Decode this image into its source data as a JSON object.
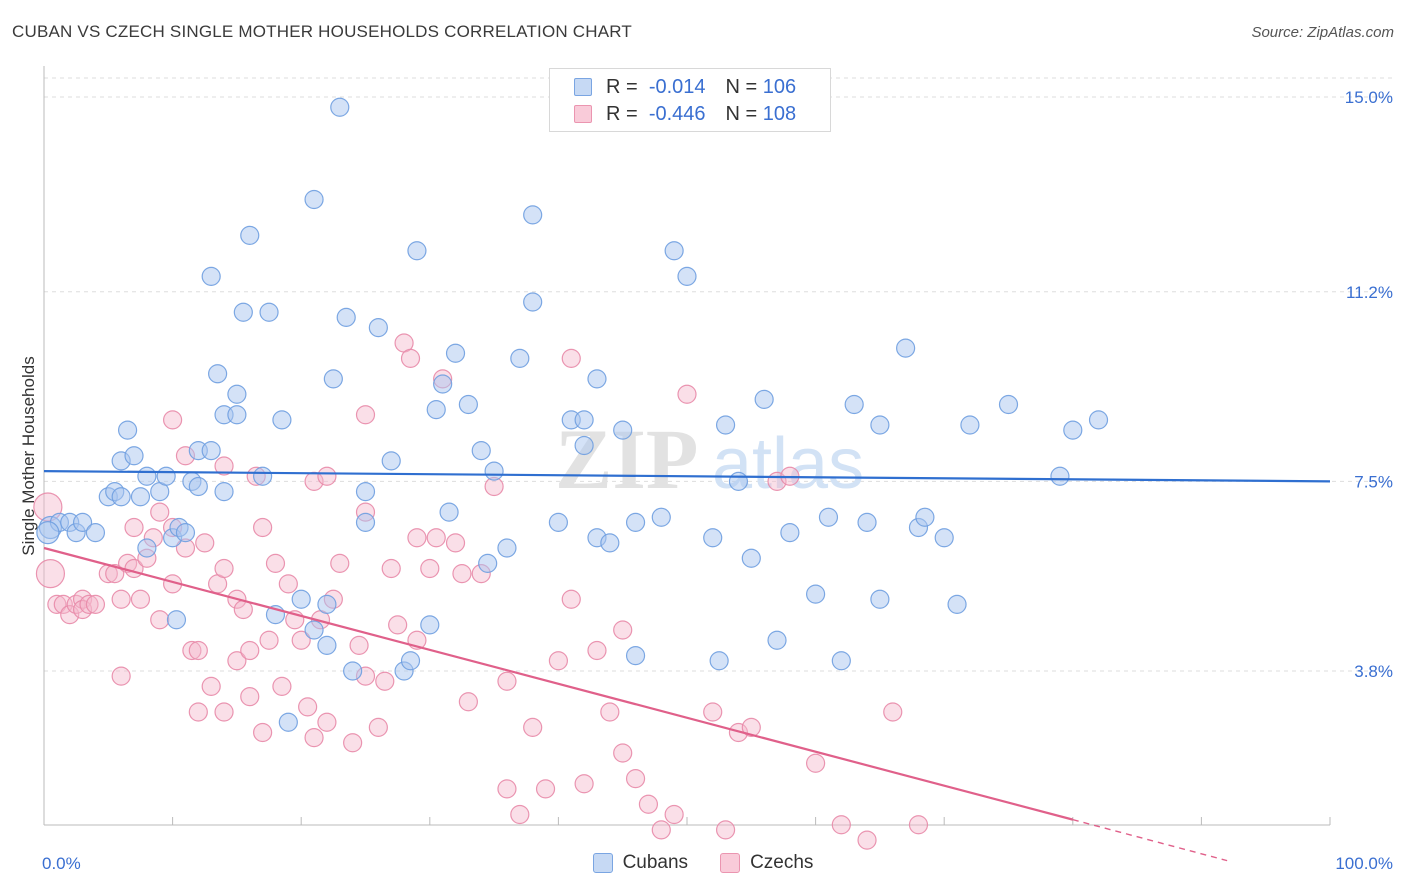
{
  "title": "CUBAN VS CZECH SINGLE MOTHER HOUSEHOLDS CORRELATION CHART",
  "source": "Source: ZipAtlas.com",
  "watermark": {
    "zip": "ZIP",
    "atlas": "atlas"
  },
  "legend": {
    "rows": [
      {
        "r_label": "R =",
        "r_value": "-0.014",
        "n_label": "N =",
        "n_value": "106"
      },
      {
        "r_label": "R =",
        "r_value": "-0.446",
        "n_label": "N =",
        "n_value": "108"
      }
    ]
  },
  "bottom_legend": {
    "cubans": "Cubans",
    "czechs": "Czechs"
  },
  "colors": {
    "cubans_fill": "#a9c6f0",
    "cubans_stroke": "#6f9fe0",
    "cubans_line": "#2f6fd0",
    "czechs_fill": "#f5b8cb",
    "czechs_stroke": "#e88aa8",
    "czechs_line": "#e0608a",
    "axis_text": "#3a6fd1",
    "grid": "#dddddd"
  },
  "chart_data": {
    "type": "scatter",
    "title": "CUBAN VS CZECH SINGLE MOTHER HOUSEHOLDS CORRELATION CHART",
    "xlabel": "",
    "ylabel": "Single Mother Households",
    "xlim": [
      0,
      100
    ],
    "ylim": [
      0,
      15.5
    ],
    "x_ticks": [
      "0.0%",
      "100.0%"
    ],
    "y_ticks": [
      {
        "value": 3.8,
        "label": "3.8%"
      },
      {
        "value": 7.5,
        "label": "7.5%"
      },
      {
        "value": 11.2,
        "label": "11.2%"
      },
      {
        "value": 15.0,
        "label": "15.0%"
      }
    ],
    "grid": true,
    "legend_position": "top-center",
    "series": [
      {
        "name": "Cubans",
        "r": -0.014,
        "n": 106,
        "trend": {
          "x": [
            0,
            100
          ],
          "y": [
            7.7,
            7.5
          ],
          "dashed_from": null
        },
        "points": [
          [
            0.5,
            6.6
          ],
          [
            1.2,
            6.7
          ],
          [
            2,
            6.7
          ],
          [
            2.5,
            6.5
          ],
          [
            3,
            6.7
          ],
          [
            4,
            6.5
          ],
          [
            5,
            7.2
          ],
          [
            5.5,
            7.3
          ],
          [
            6,
            7.9
          ],
          [
            6,
            7.2
          ],
          [
            6.5,
            8.5
          ],
          [
            7,
            8.0
          ],
          [
            7.5,
            7.2
          ],
          [
            8,
            6.2
          ],
          [
            8,
            7.6
          ],
          [
            9,
            7.3
          ],
          [
            9.5,
            7.6
          ],
          [
            10,
            6.4
          ],
          [
            10.3,
            4.8
          ],
          [
            10.5,
            6.6
          ],
          [
            11,
            6.5
          ],
          [
            11.5,
            7.5
          ],
          [
            12,
            7.4
          ],
          [
            12,
            8.1
          ],
          [
            13,
            8.1
          ],
          [
            13,
            11.5
          ],
          [
            13.5,
            9.6
          ],
          [
            14,
            7.3
          ],
          [
            14,
            8.8
          ],
          [
            15,
            8.8
          ],
          [
            15,
            9.2
          ],
          [
            15.5,
            10.8
          ],
          [
            16,
            12.3
          ],
          [
            17,
            7.6
          ],
          [
            17.5,
            10.8
          ],
          [
            18,
            4.9
          ],
          [
            18.5,
            8.7
          ],
          [
            19,
            2.8
          ],
          [
            20,
            5.2
          ],
          [
            21,
            13.0
          ],
          [
            21,
            4.6
          ],
          [
            22,
            4.3
          ],
          [
            22,
            5.1
          ],
          [
            22.5,
            9.5
          ],
          [
            23,
            14.8
          ],
          [
            23.5,
            10.7
          ],
          [
            24,
            3.8
          ],
          [
            25,
            7.3
          ],
          [
            25,
            6.7
          ],
          [
            26,
            10.5
          ],
          [
            27,
            7.9
          ],
          [
            28,
            3.8
          ],
          [
            28.5,
            4.0
          ],
          [
            29,
            12.0
          ],
          [
            30,
            4.7
          ],
          [
            30.5,
            8.9
          ],
          [
            31,
            9.4
          ],
          [
            31.5,
            6.9
          ],
          [
            32,
            10.0
          ],
          [
            33,
            9.0
          ],
          [
            34,
            8.1
          ],
          [
            34.5,
            5.9
          ],
          [
            35,
            7.7
          ],
          [
            36,
            6.2
          ],
          [
            37,
            9.9
          ],
          [
            38,
            12.7
          ],
          [
            38,
            11.0
          ],
          [
            40,
            6.7
          ],
          [
            41,
            8.7
          ],
          [
            42,
            8.7
          ],
          [
            42,
            8.2
          ],
          [
            43,
            9.5
          ],
          [
            43,
            6.4
          ],
          [
            44,
            6.3
          ],
          [
            45,
            8.5
          ],
          [
            46,
            6.7
          ],
          [
            46,
            4.1
          ],
          [
            48,
            6.8
          ],
          [
            49,
            12.0
          ],
          [
            50,
            11.5
          ],
          [
            52,
            6.4
          ],
          [
            52.5,
            4.0
          ],
          [
            53,
            8.6
          ],
          [
            54,
            7.5
          ],
          [
            55,
            6.0
          ],
          [
            56,
            9.1
          ],
          [
            57,
            4.4
          ],
          [
            58,
            6.5
          ],
          [
            60,
            5.3
          ],
          [
            61,
            6.8
          ],
          [
            62,
            4.0
          ],
          [
            63,
            9.0
          ],
          [
            64,
            6.7
          ],
          [
            65,
            5.2
          ],
          [
            65,
            8.6
          ],
          [
            67,
            10.1
          ],
          [
            68,
            6.6
          ],
          [
            68.5,
            6.8
          ],
          [
            70,
            6.4
          ],
          [
            71,
            5.1
          ],
          [
            72,
            8.6
          ],
          [
            75,
            9.0
          ],
          [
            79,
            7.6
          ],
          [
            80,
            8.5
          ],
          [
            82,
            8.7
          ],
          [
            0.3,
            6.5
          ]
        ]
      },
      {
        "name": "Czechs",
        "r": -0.446,
        "n": 108,
        "trend": {
          "x": [
            0,
            80
          ],
          "y": [
            6.2,
            0.9
          ],
          "dashed_from": 80,
          "dashed_to": [
            92,
            0.1
          ]
        },
        "points": [
          [
            0.3,
            7.0
          ],
          [
            0.5,
            5.7
          ],
          [
            1,
            5.1
          ],
          [
            1.5,
            5.1
          ],
          [
            2,
            4.9
          ],
          [
            2.5,
            5.1
          ],
          [
            3,
            5.2
          ],
          [
            3,
            5.0
          ],
          [
            3.5,
            5.1
          ],
          [
            4,
            5.1
          ],
          [
            5,
            5.7
          ],
          [
            5.5,
            5.7
          ],
          [
            6,
            5.2
          ],
          [
            6.5,
            5.9
          ],
          [
            7,
            6.6
          ],
          [
            7,
            5.8
          ],
          [
            7.5,
            5.2
          ],
          [
            8,
            6.0
          ],
          [
            8.5,
            6.4
          ],
          [
            9,
            4.8
          ],
          [
            9,
            6.9
          ],
          [
            10,
            6.6
          ],
          [
            10,
            5.5
          ],
          [
            11,
            8.0
          ],
          [
            11,
            6.2
          ],
          [
            11.5,
            4.2
          ],
          [
            12,
            4.2
          ],
          [
            12.5,
            6.3
          ],
          [
            13,
            3.5
          ],
          [
            13.5,
            5.5
          ],
          [
            14,
            7.8
          ],
          [
            14,
            5.8
          ],
          [
            15,
            4.0
          ],
          [
            15,
            5.2
          ],
          [
            15.5,
            5.0
          ],
          [
            16,
            4.2
          ],
          [
            16,
            3.3
          ],
          [
            16.5,
            7.6
          ],
          [
            17,
            6.6
          ],
          [
            17.5,
            4.4
          ],
          [
            18,
            5.9
          ],
          [
            18.5,
            3.5
          ],
          [
            19,
            5.5
          ],
          [
            19.5,
            4.8
          ],
          [
            20,
            4.4
          ],
          [
            20.5,
            3.1
          ],
          [
            21,
            7.5
          ],
          [
            21,
            2.5
          ],
          [
            21.5,
            4.8
          ],
          [
            22,
            7.6
          ],
          [
            22,
            2.8
          ],
          [
            22.5,
            5.2
          ],
          [
            23,
            5.9
          ],
          [
            24,
            2.4
          ],
          [
            24.5,
            4.3
          ],
          [
            25,
            8.8
          ],
          [
            25,
            6.9
          ],
          [
            25,
            3.7
          ],
          [
            26,
            2.7
          ],
          [
            26.5,
            3.6
          ],
          [
            27,
            5.8
          ],
          [
            27.5,
            4.7
          ],
          [
            28,
            10.2
          ],
          [
            28.5,
            9.9
          ],
          [
            29,
            6.4
          ],
          [
            29,
            4.4
          ],
          [
            30,
            5.8
          ],
          [
            30.5,
            6.4
          ],
          [
            31,
            9.5
          ],
          [
            32,
            6.3
          ],
          [
            32.5,
            5.7
          ],
          [
            33,
            3.2
          ],
          [
            34,
            5.7
          ],
          [
            35,
            7.4
          ],
          [
            36,
            3.6
          ],
          [
            36,
            1.5
          ],
          [
            37,
            1.0
          ],
          [
            38,
            2.7
          ],
          [
            39,
            1.5
          ],
          [
            40,
            4.0
          ],
          [
            41,
            9.9
          ],
          [
            41,
            5.2
          ],
          [
            42,
            1.6
          ],
          [
            43,
            4.2
          ],
          [
            44,
            3.0
          ],
          [
            45,
            2.2
          ],
          [
            45,
            4.6
          ],
          [
            46,
            1.7
          ],
          [
            47,
            1.2
          ],
          [
            48,
            0.7
          ],
          [
            49,
            1.0
          ],
          [
            50,
            9.2
          ],
          [
            52,
            3.0
          ],
          [
            53,
            0.7
          ],
          [
            54,
            2.6
          ],
          [
            55,
            2.7
          ],
          [
            57,
            7.5
          ],
          [
            58,
            7.6
          ],
          [
            60,
            2.0
          ],
          [
            62,
            0.8
          ],
          [
            64,
            0.5
          ],
          [
            66,
            3.0
          ],
          [
            68,
            0.8
          ],
          [
            10,
            8.7
          ],
          [
            12,
            3.0
          ],
          [
            14,
            3.0
          ],
          [
            17,
            2.6
          ],
          [
            6,
            3.7
          ]
        ]
      }
    ]
  }
}
